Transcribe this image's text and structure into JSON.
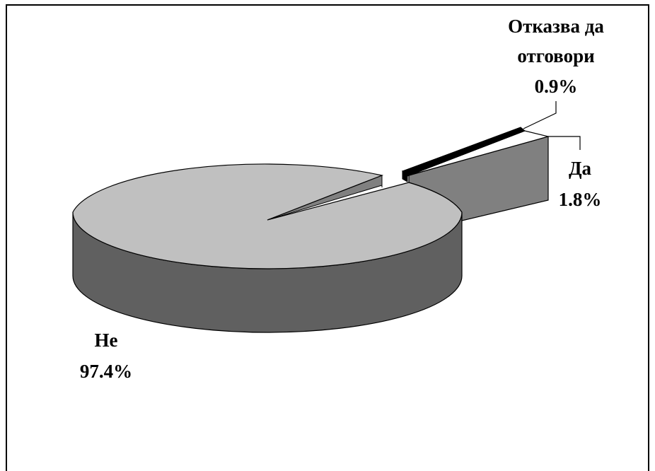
{
  "chart_data": {
    "type": "pie",
    "style": "3d-exploded",
    "slices": [
      {
        "label": "Не",
        "value": 97.4,
        "value_label": "97.4%",
        "color": "#c0c0c0",
        "side_color": "#606060"
      },
      {
        "label": "Да",
        "value": 1.8,
        "value_label": "1.8%",
        "color": "#ffffff",
        "side_color": "#808080"
      },
      {
        "label": "Отказва да отговори",
        "label_lines": [
          "Отказва да",
          "отговори"
        ],
        "value": 0.9,
        "value_label": "0.9%",
        "color": "#000000",
        "side_color": "#000000"
      }
    ],
    "legend": "none"
  }
}
